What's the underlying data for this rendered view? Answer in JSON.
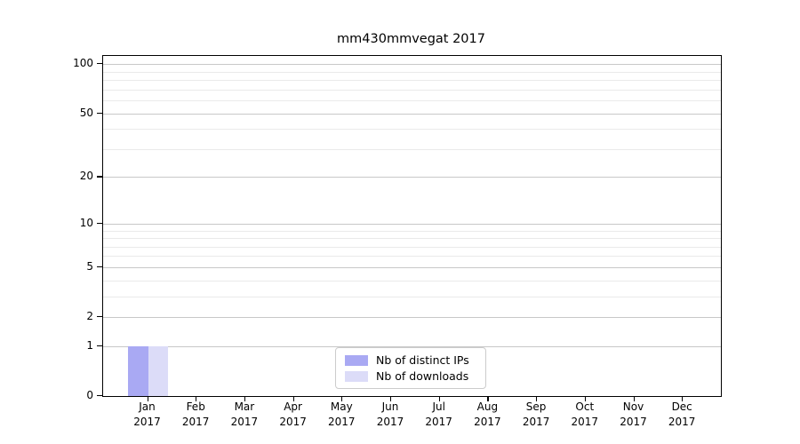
{
  "title": "mm430mmvegat 2017",
  "colors": {
    "distinct_ips": "#a9a9f3",
    "downloads": "#dcdcf8",
    "grid_major": "#c8c8c8",
    "grid_minor": "#eaeaea",
    "axis": "#000000",
    "legend_border": "#cccccc"
  },
  "legend": {
    "items": [
      {
        "label": "Nb of distinct IPs",
        "color": "#a9a9f3"
      },
      {
        "label": "Nb of downloads",
        "color": "#dcdcf8"
      }
    ]
  },
  "chart_data": {
    "type": "bar",
    "title": "mm430mmvegat 2017",
    "categories": [
      "Jan",
      "Feb",
      "Mar",
      "Apr",
      "May",
      "Jun",
      "Jul",
      "Aug",
      "Sep",
      "Oct",
      "Nov",
      "Dec"
    ],
    "category_year_label": "2017",
    "series": [
      {
        "name": "Nb of distinct IPs",
        "color": "#a9a9f3",
        "values": [
          1,
          0,
          0,
          0,
          0,
          0,
          0,
          0,
          0,
          0,
          0,
          0
        ]
      },
      {
        "name": "Nb of downloads",
        "color": "#dcdcf8",
        "values": [
          1,
          0,
          0,
          0,
          0,
          0,
          0,
          0,
          0,
          0,
          0,
          0
        ]
      }
    ],
    "xlabel": "",
    "ylabel": "",
    "y_scale": "log10(value+1)",
    "y_ticks": [
      0,
      1,
      2,
      5,
      10,
      20,
      50,
      100
    ],
    "y_minor_gridlines": [
      3,
      4,
      6,
      7,
      8,
      9,
      30,
      40,
      60,
      70,
      80,
      90
    ],
    "ylim": [
      0,
      110
    ],
    "grid": "horizontal",
    "legend_position": "bottom-center-inside"
  }
}
